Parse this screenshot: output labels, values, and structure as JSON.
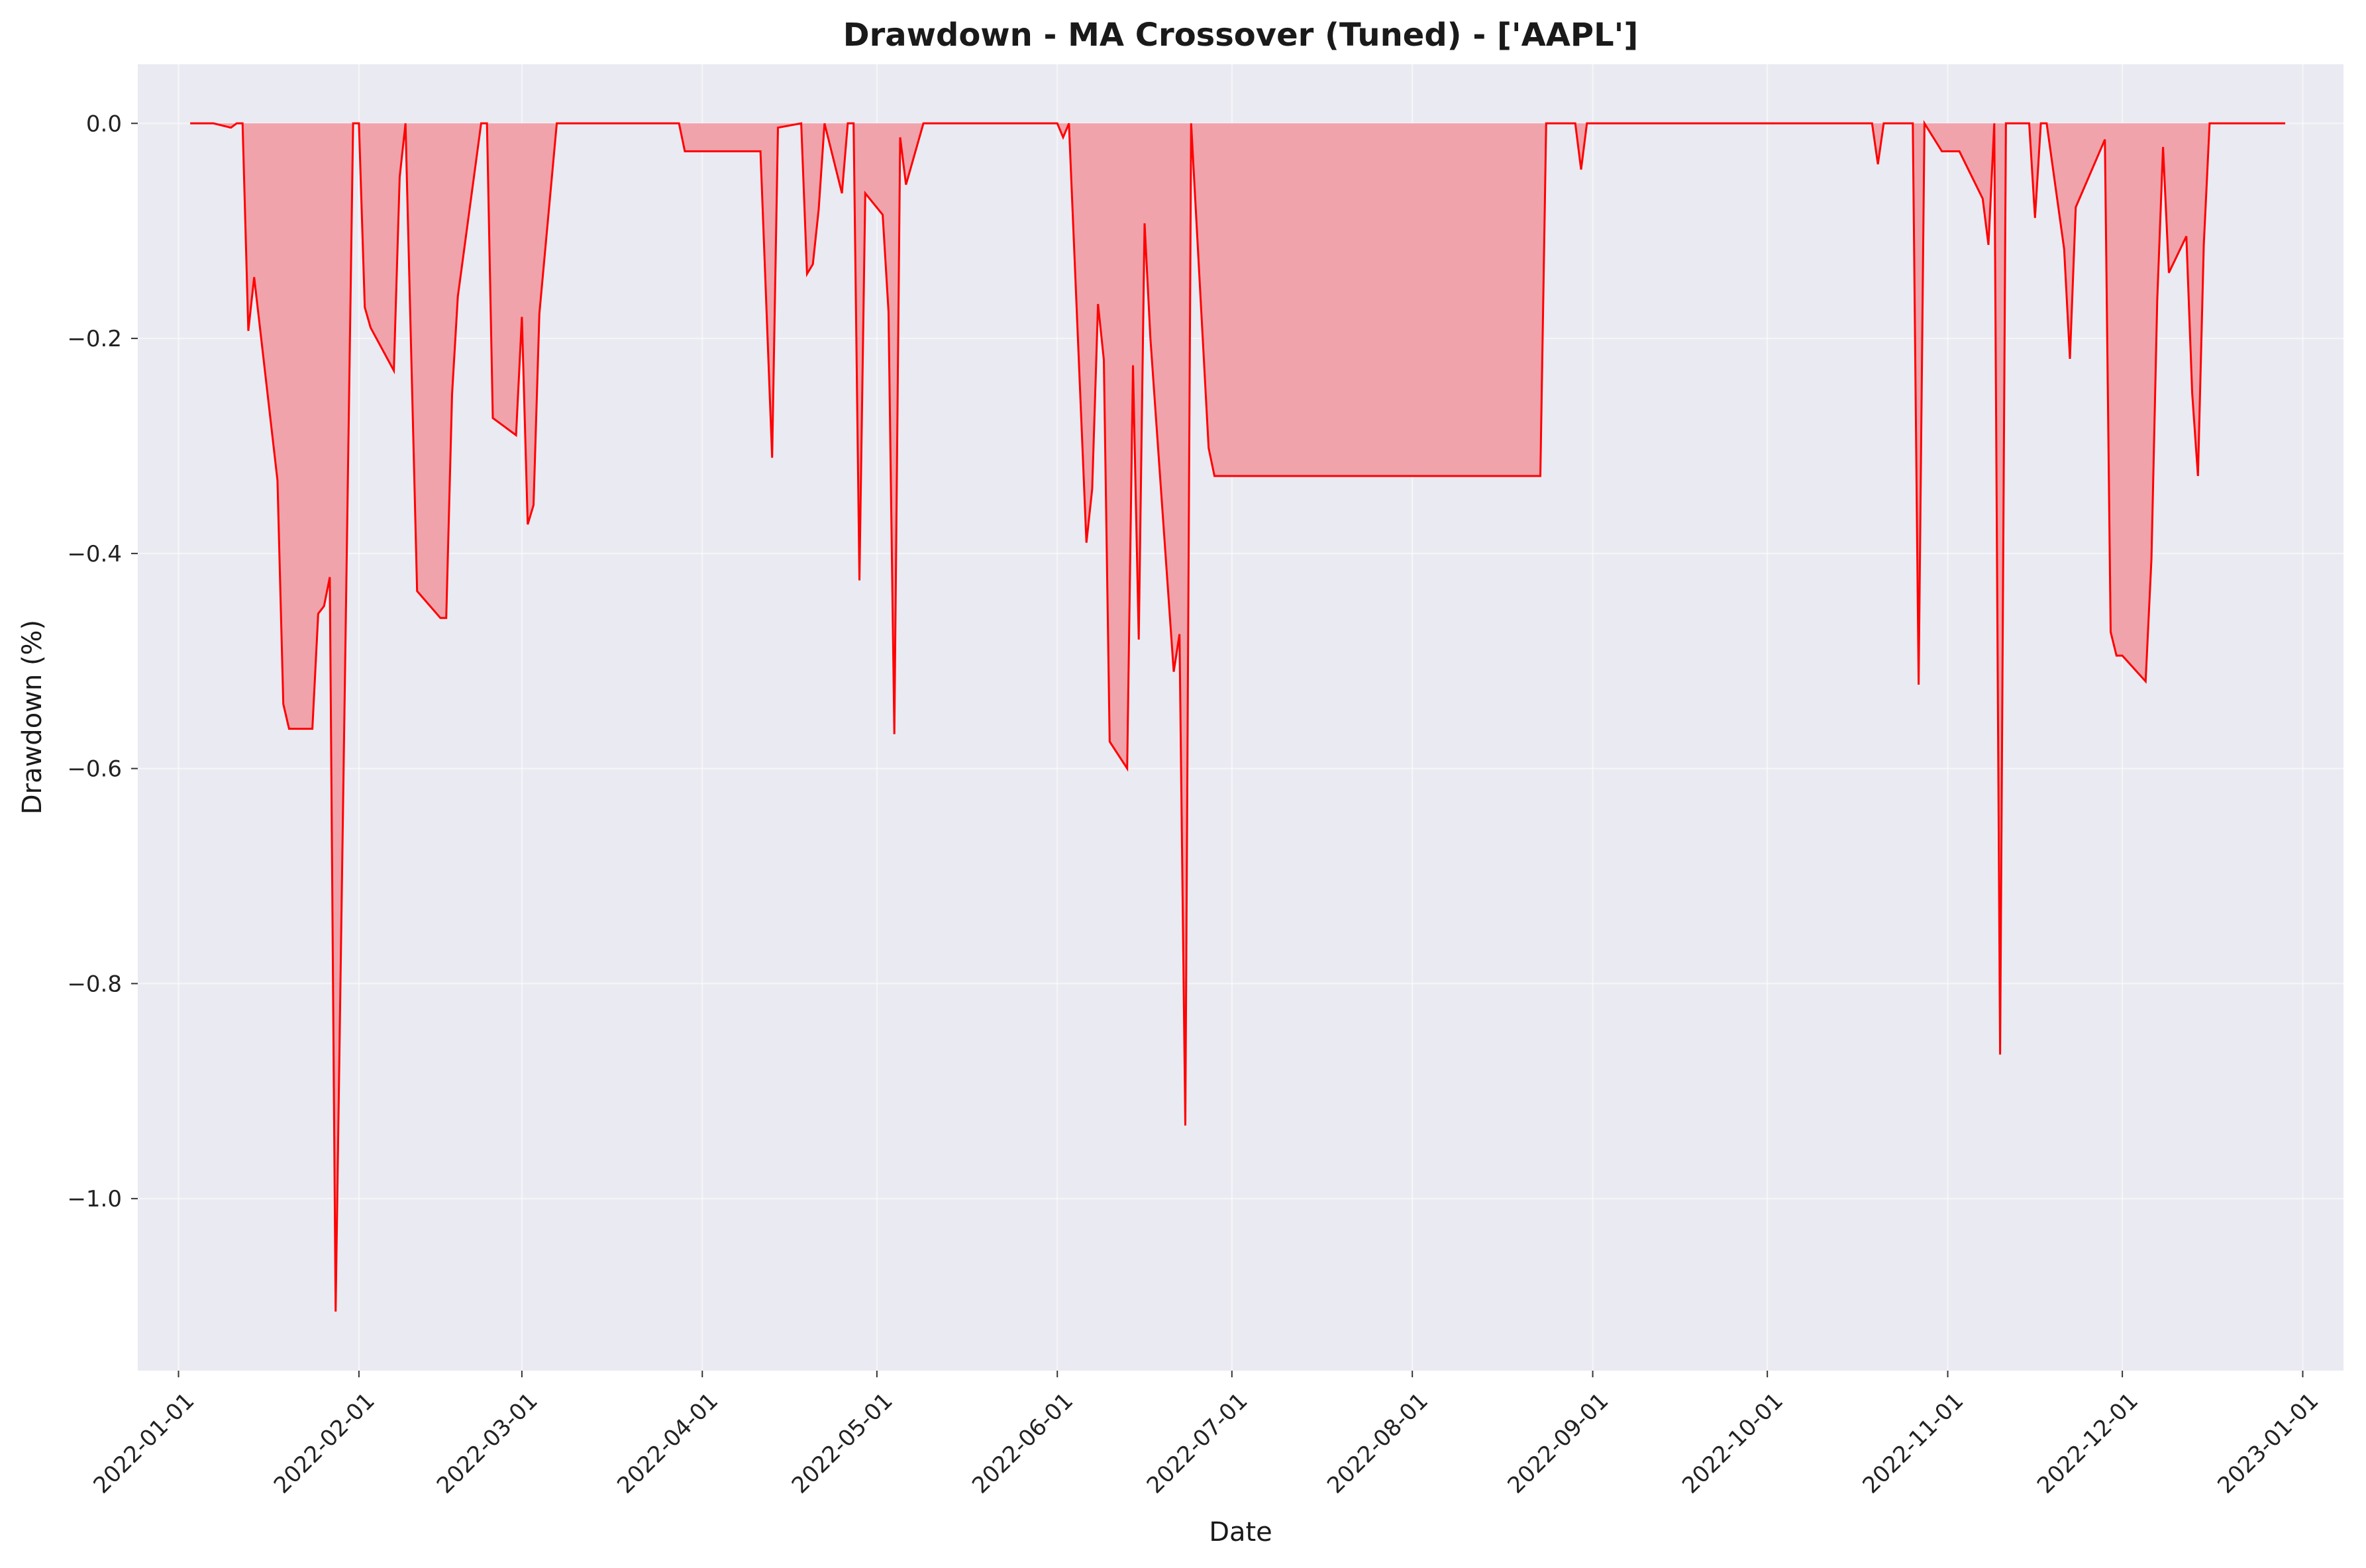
{
  "chart_data": {
    "type": "area",
    "title": "Drawdown - MA Crossover (Tuned) - ['AAPL']",
    "xlabel": "Date",
    "ylabel": "Drawdown (%)",
    "x_ticks": [
      "2022-01-01",
      "2022-02-01",
      "2022-03-01",
      "2022-04-01",
      "2022-05-01",
      "2022-06-01",
      "2022-07-01",
      "2022-08-01",
      "2022-09-01",
      "2022-10-01",
      "2022-11-01",
      "2022-12-01",
      "2023-01-01"
    ],
    "y_ticks": [
      0.0,
      -0.2,
      -0.4,
      -0.6,
      -0.8,
      -1.0
    ],
    "y_tick_labels": [
      "0.0",
      "−0.2",
      "−0.4",
      "−0.6",
      "−0.8",
      "−1.0"
    ],
    "xlim": [
      "2021-12-25",
      "2023-01-08"
    ],
    "ylim": [
      -1.16,
      0.055
    ],
    "grid": true,
    "colors": {
      "line": "#ff0000",
      "fill": "#f0a3ab",
      "plot_bg": "#eaeaf2",
      "grid": "#ffffff"
    },
    "series": [
      {
        "x": [
          "2022-01-03",
          "2022-01-07",
          "2022-01-10",
          "2022-01-11",
          "2022-01-12",
          "2022-01-13",
          "2022-01-14",
          "2022-01-18",
          "2022-01-19",
          "2022-01-20",
          "2022-01-24",
          "2022-01-25",
          "2022-01-26",
          "2022-01-27",
          "2022-01-28",
          "2022-01-31",
          "2022-02-01",
          "2022-02-02",
          "2022-02-03",
          "2022-02-07",
          "2022-02-08",
          "2022-02-09",
          "2022-02-11",
          "2022-02-15",
          "2022-02-16",
          "2022-02-17",
          "2022-02-18",
          "2022-02-22",
          "2022-02-23",
          "2022-02-24",
          "2022-02-28",
          "2022-03-01",
          "2022-03-02",
          "2022-03-03",
          "2022-03-04",
          "2022-03-07",
          "2022-03-28",
          "2022-03-29",
          "2022-04-11",
          "2022-04-13",
          "2022-04-14",
          "2022-04-18",
          "2022-04-19",
          "2022-04-20",
          "2022-04-21",
          "2022-04-22",
          "2022-04-25",
          "2022-04-26",
          "2022-04-27",
          "2022-04-28",
          "2022-04-29",
          "2022-05-02",
          "2022-05-03",
          "2022-05-04",
          "2022-05-05",
          "2022-05-06",
          "2022-05-09",
          "2022-06-01",
          "2022-06-02",
          "2022-06-03",
          "2022-06-06",
          "2022-06-07",
          "2022-06-08",
          "2022-06-09",
          "2022-06-10",
          "2022-06-13",
          "2022-06-14",
          "2022-06-15",
          "2022-06-16",
          "2022-06-17",
          "2022-06-21",
          "2022-06-22",
          "2022-06-23",
          "2022-06-24",
          "2022-06-27",
          "2022-06-28",
          "2022-06-29",
          "2022-08-23",
          "2022-08-24",
          "2022-08-29",
          "2022-08-30",
          "2022-08-31",
          "2022-10-19",
          "2022-10-20",
          "2022-10-21",
          "2022-10-26",
          "2022-10-27",
          "2022-10-28",
          "2022-10-31",
          "2022-11-03",
          "2022-11-07",
          "2022-11-08",
          "2022-11-09",
          "2022-11-10",
          "2022-11-11",
          "2022-11-15",
          "2022-11-16",
          "2022-11-17",
          "2022-11-18",
          "2022-11-21",
          "2022-11-22",
          "2022-11-23",
          "2022-11-28",
          "2022-11-29",
          "2022-11-30",
          "2022-12-01",
          "2022-12-05",
          "2022-12-06",
          "2022-12-07",
          "2022-12-08",
          "2022-12-09",
          "2022-12-12",
          "2022-12-13",
          "2022-12-14",
          "2022-12-15",
          "2022-12-16",
          "2022-12-29"
        ],
        "values": [
          0.0,
          0.0,
          -0.004,
          0.0,
          0.0,
          -0.193,
          -0.143,
          -0.332,
          -0.54,
          -0.563,
          -0.563,
          -0.456,
          -0.449,
          -0.422,
          -1.105,
          0.0,
          0.0,
          -0.171,
          -0.19,
          -0.23,
          -0.05,
          0.0,
          -0.435,
          -0.46,
          -0.46,
          -0.252,
          -0.161,
          0.0,
          0.0,
          -0.274,
          -0.29,
          -0.18,
          -0.373,
          -0.355,
          -0.177,
          0.0,
          0.0,
          -0.026,
          -0.026,
          -0.311,
          -0.004,
          0.0,
          -0.14,
          -0.131,
          -0.08,
          0.0,
          -0.065,
          0.0,
          0.0,
          -0.425,
          -0.065,
          -0.085,
          -0.175,
          -0.568,
          -0.013,
          -0.057,
          0.0,
          0.0,
          -0.013,
          0.0,
          -0.39,
          -0.34,
          -0.168,
          -0.22,
          -0.575,
          -0.6,
          -0.225,
          -0.48,
          -0.093,
          -0.2,
          -0.51,
          -0.475,
          -0.932,
          0.0,
          -0.302,
          -0.328,
          -0.328,
          -0.328,
          0.0,
          0.0,
          -0.043,
          0.0,
          0.0,
          -0.038,
          0.0,
          0.0,
          -0.522,
          0.0,
          -0.026,
          -0.026,
          -0.07,
          -0.113,
          0.0,
          -0.866,
          0.0,
          0.0,
          -0.088,
          0.0,
          0.0,
          -0.117,
          -0.219,
          -0.078,
          -0.015,
          -0.473,
          -0.495,
          -0.495,
          -0.519,
          -0.405,
          -0.165,
          -0.022,
          -0.139,
          -0.105,
          -0.251,
          -0.328,
          -0.113,
          0.0,
          0.0
        ]
      }
    ]
  }
}
